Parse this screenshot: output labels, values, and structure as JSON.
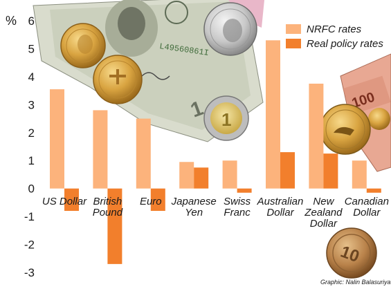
{
  "chart_data": {
    "type": "bar",
    "unit_label": "%",
    "categories": [
      [
        "US Dollar"
      ],
      [
        "British",
        "Pound"
      ],
      [
        "Euro"
      ],
      [
        "Japanese",
        "Yen"
      ],
      [
        "Swiss",
        "Franc"
      ],
      [
        "Australian",
        "Dollar"
      ],
      [
        "New",
        "Zealand",
        "Dollar"
      ],
      [
        "Canadian",
        "Dollar"
      ]
    ],
    "series": [
      {
        "name": "NRFC rates",
        "color": "#fcb37c",
        "values": [
          3.55,
          2.8,
          2.5,
          0.95,
          1.0,
          5.3,
          3.75,
          1.0
        ]
      },
      {
        "name": "Real policy rates",
        "color": "#f27f2c",
        "values": [
          -0.8,
          -2.7,
          -0.8,
          0.75,
          -0.15,
          1.3,
          1.25,
          -0.15
        ]
      }
    ],
    "ylim": [
      -3,
      6
    ],
    "yticks": [
      6,
      5,
      4,
      3,
      2,
      1,
      0,
      -1,
      -2,
      -3
    ],
    "legend_position": "top-right",
    "grid": false
  },
  "credit": "Graphic: Nalin Balasuriya",
  "decorations": [
    "us-dollar-banknote",
    "gold-coins",
    "british-pound-coin",
    "euro-coin",
    "nz-dollar-banknote",
    "canadian-dollar-coin",
    "japanese-10-yen-coin"
  ]
}
